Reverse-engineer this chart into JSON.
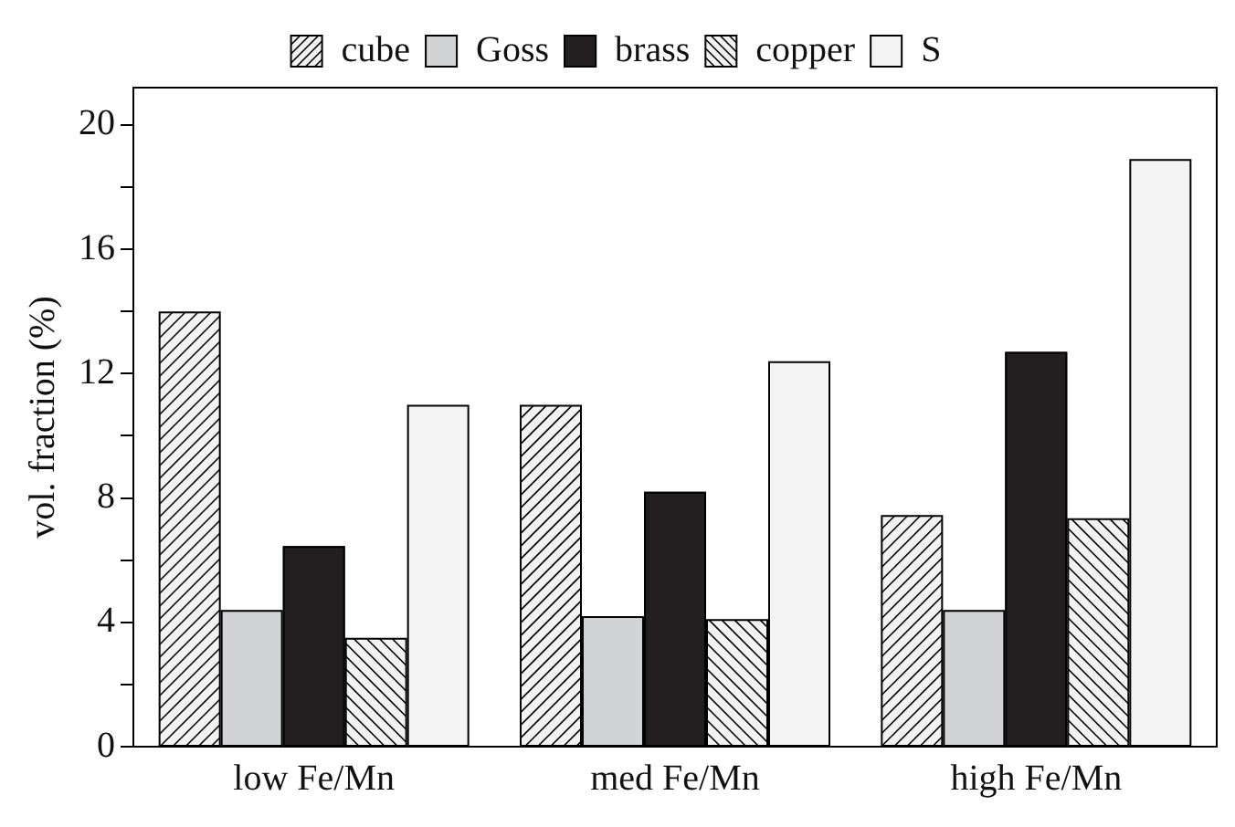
{
  "chart_data": {
    "type": "bar",
    "ylabel": "vol. fraction (%)",
    "categories": [
      "low Fe/Mn",
      "med Fe/Mn",
      "high Fe/Mn"
    ],
    "series": [
      {
        "name": "cube",
        "color": "#f2f2f2",
        "values": [
          14.0,
          11.0,
          7.45
        ]
      },
      {
        "name": "Goss",
        "color": "#d1d3d4",
        "values": [
          4.4,
          4.2,
          4.4
        ]
      },
      {
        "name": "brass",
        "color": "#231f20",
        "values": [
          6.45,
          8.2,
          12.7
        ]
      },
      {
        "name": "copper",
        "color": "#f2f2f2",
        "values": [
          3.5,
          4.1,
          7.35
        ]
      },
      {
        "name": "S",
        "color": "#f4f4f4",
        "values": [
          11.0,
          12.4,
          18.9
        ]
      }
    ],
    "ylim": [
      0,
      21.2
    ],
    "yticks": [
      0,
      {
        "value": 2,
        "label": null
      },
      4,
      {
        "value": 6,
        "label": null
      },
      8,
      {
        "value": 10,
        "label": null
      },
      12,
      {
        "value": 14,
        "label": null
      },
      16,
      {
        "value": 18,
        "label": null
      },
      20
    ],
    "grid": false,
    "legend": "top"
  }
}
